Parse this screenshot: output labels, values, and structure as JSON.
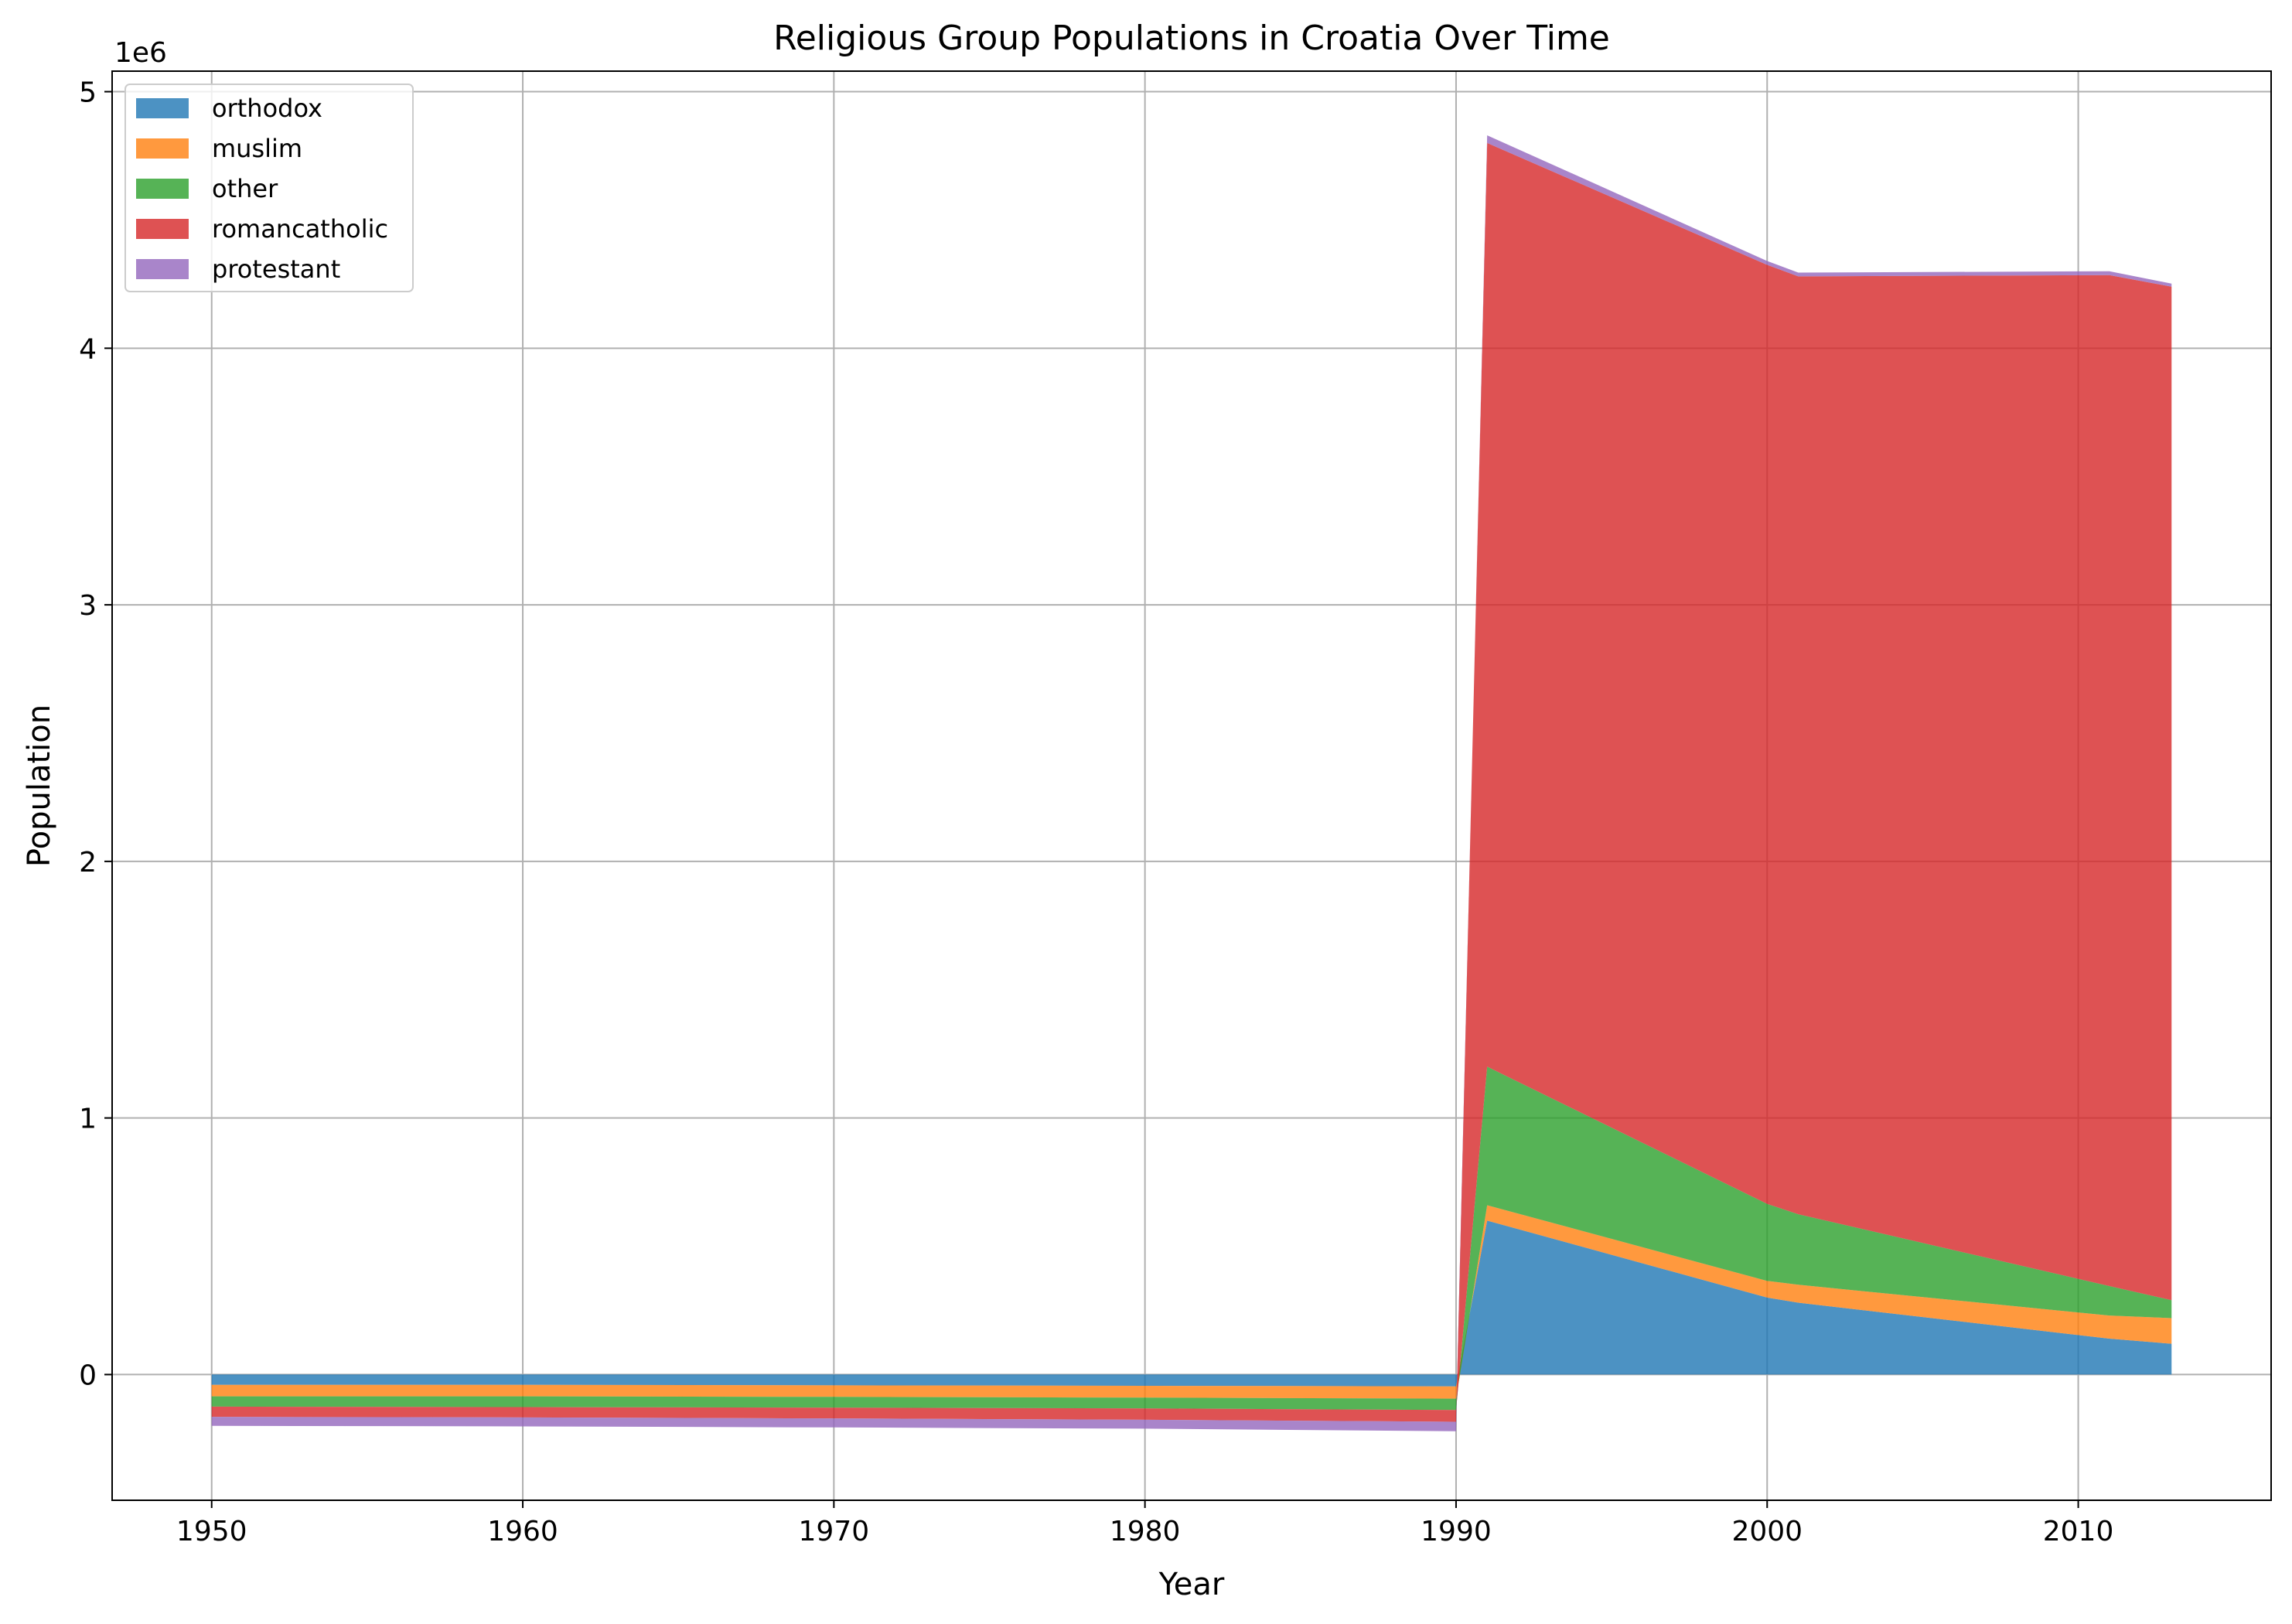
{
  "chart_data": {
    "type": "area",
    "stacked": true,
    "title": "Religious Group Populations in Croatia Over Time",
    "xlabel": "Year",
    "ylabel": "Population",
    "y_offset_label": "1e6",
    "y_scale": 1000000,
    "xlim": [
      1946.8,
      2016.2
    ],
    "ylim": [
      -490000,
      5080000
    ],
    "x_ticks": [
      1950,
      1960,
      1970,
      1980,
      1990,
      2000,
      2010
    ],
    "x_tick_labels": [
      "1950",
      "1960",
      "1970",
      "1980",
      "1990",
      "2000",
      "2010"
    ],
    "y_ticks": [
      0,
      1000000,
      2000000,
      3000000,
      4000000,
      5000000
    ],
    "y_tick_labels": [
      "0",
      "1",
      "2",
      "3",
      "4",
      "5"
    ],
    "grid": true,
    "legend_position": "top-left",
    "x": [
      1950,
      1960,
      1970,
      1980,
      1990,
      1991,
      2000,
      2001,
      2011,
      2013
    ],
    "series": [
      {
        "name": "orthodox",
        "color": "#1f77b4",
        "values": [
          -40000,
          -40000,
          -42000,
          -44000,
          -46000,
          600000,
          300000,
          280000,
          140000,
          120000
        ]
      },
      {
        "name": "muslim",
        "color": "#ff7f0e",
        "values": [
          -45000,
          -45000,
          -45000,
          -46000,
          -48000,
          60000,
          65000,
          70000,
          90000,
          100000
        ]
      },
      {
        "name": "other",
        "color": "#2ca02c",
        "values": [
          -40000,
          -42000,
          -42000,
          -42000,
          -44000,
          540000,
          300000,
          275000,
          115000,
          70000
        ]
      },
      {
        "name": "romancatholic",
        "color": "#d62728",
        "values": [
          -40000,
          -40000,
          -42000,
          -44000,
          -46000,
          3600000,
          3660000,
          3655000,
          3940000,
          3950000
        ]
      },
      {
        "name": "protestant",
        "color": "#9467bd",
        "values": [
          -35000,
          -35000,
          -35000,
          -35000,
          -37000,
          30000,
          15000,
          15000,
          15000,
          12000
        ]
      }
    ]
  }
}
